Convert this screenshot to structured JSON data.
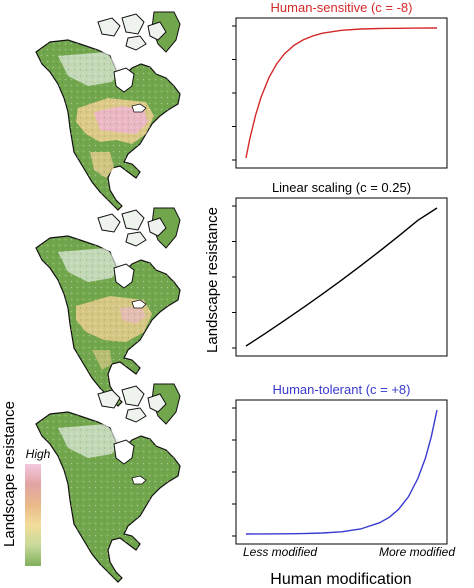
{
  "figure": {
    "y_axis_label": "Landscape resistance",
    "x_axis_label": "Human modification",
    "x_tick_left": "Less modified",
    "x_tick_right": "More modified",
    "legend": {
      "title": "Landscape resistance",
      "high_label": "High",
      "colors": [
        "#f3c9df",
        "#e2a3a3",
        "#e9b98a",
        "#f2dd9a",
        "#c7d99a",
        "#7fb05b"
      ]
    },
    "map_colors": {
      "land_low": "#71a64d",
      "land_mid": "#e9cd8e",
      "land_high": "#efb4cf",
      "ice": "#eef3ee",
      "coast": "#111111"
    }
  },
  "chart_data": [
    {
      "type": "line",
      "title": "Human-sensitive (c = -8)",
      "c": -8,
      "color": "#d42a2a",
      "xlim": [
        0,
        1
      ],
      "ylim": [
        0,
        1
      ],
      "x": [
        0,
        0.02,
        0.05,
        0.08,
        0.12,
        0.16,
        0.2,
        0.25,
        0.3,
        0.35,
        0.4,
        0.5,
        0.6,
        0.7,
        0.8,
        0.9,
        1.0
      ],
      "y": [
        0,
        0.148,
        0.33,
        0.473,
        0.618,
        0.723,
        0.799,
        0.865,
        0.909,
        0.939,
        0.96,
        0.982,
        0.992,
        0.996,
        0.998,
        0.999,
        1.0
      ]
    },
    {
      "type": "line",
      "title": "Linear scaling (c = 0.25)",
      "c": 0.25,
      "color": "#000000",
      "xlim": [
        0,
        1
      ],
      "ylim": [
        0,
        1
      ],
      "x": [
        0,
        0.1,
        0.2,
        0.3,
        0.4,
        0.5,
        0.6,
        0.7,
        0.8,
        0.9,
        1.0
      ],
      "y": [
        0,
        0.09,
        0.183,
        0.278,
        0.376,
        0.477,
        0.581,
        0.688,
        0.798,
        0.911,
        1.0
      ]
    },
    {
      "type": "line",
      "title": "Human-tolerant (c = +8)",
      "c": 8,
      "color": "#3a3ad0",
      "xlim": [
        0,
        1
      ],
      "ylim": [
        0,
        1
      ],
      "x": [
        0,
        0.1,
        0.2,
        0.3,
        0.4,
        0.5,
        0.6,
        0.7,
        0.75,
        0.8,
        0.85,
        0.9,
        0.94,
        0.97,
        1.0
      ],
      "y": [
        0,
        0.001,
        0.002,
        0.003,
        0.008,
        0.018,
        0.04,
        0.091,
        0.135,
        0.201,
        0.3,
        0.448,
        0.614,
        0.785,
        1.0
      ]
    }
  ]
}
